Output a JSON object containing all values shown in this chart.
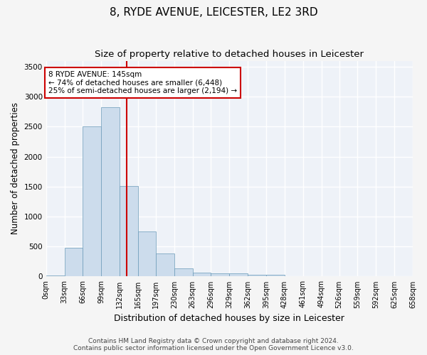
{
  "title": "8, RYDE AVENUE, LEICESTER, LE2 3RD",
  "subtitle": "Size of property relative to detached houses in Leicester",
  "xlabel": "Distribution of detached houses by size in Leicester",
  "ylabel": "Number of detached properties",
  "bar_color": "#ccdcec",
  "bar_edge_color": "#6a9ab8",
  "background_color": "#eef2f8",
  "grid_color": "#ffffff",
  "bin_edges": [
    0,
    33,
    66,
    99,
    132,
    165,
    197,
    230,
    263,
    296,
    329,
    362,
    395,
    428,
    461,
    494,
    526,
    559,
    592,
    625,
    658
  ],
  "bar_heights": [
    20,
    480,
    2510,
    2820,
    1510,
    750,
    390,
    140,
    70,
    55,
    55,
    30,
    30,
    0,
    0,
    0,
    0,
    0,
    0,
    0
  ],
  "tick_labels": [
    "0sqm",
    "33sqm",
    "66sqm",
    "99sqm",
    "132sqm",
    "165sqm",
    "197sqm",
    "230sqm",
    "263sqm",
    "296sqm",
    "329sqm",
    "362sqm",
    "395sqm",
    "428sqm",
    "461sqm",
    "494sqm",
    "526sqm",
    "559sqm",
    "592sqm",
    "625sqm",
    "658sqm"
  ],
  "property_size": 145,
  "property_line_color": "#cc0000",
  "annotation_line1": "8 RYDE AVENUE: 145sqm",
  "annotation_line2": "← 74% of detached houses are smaller (6,448)",
  "annotation_line3": "25% of semi-detached houses are larger (2,194) →",
  "annotation_box_color": "#cc0000",
  "ylim": [
    0,
    3600
  ],
  "yticks": [
    0,
    500,
    1000,
    1500,
    2000,
    2500,
    3000,
    3500
  ],
  "footer_text": "Contains HM Land Registry data © Crown copyright and database right 2024.\nContains public sector information licensed under the Open Government Licence v3.0.",
  "title_fontsize": 11,
  "subtitle_fontsize": 9.5,
  "axis_label_fontsize": 8.5,
  "tick_fontsize": 7,
  "annotation_fontsize": 7.5,
  "footer_fontsize": 6.5
}
